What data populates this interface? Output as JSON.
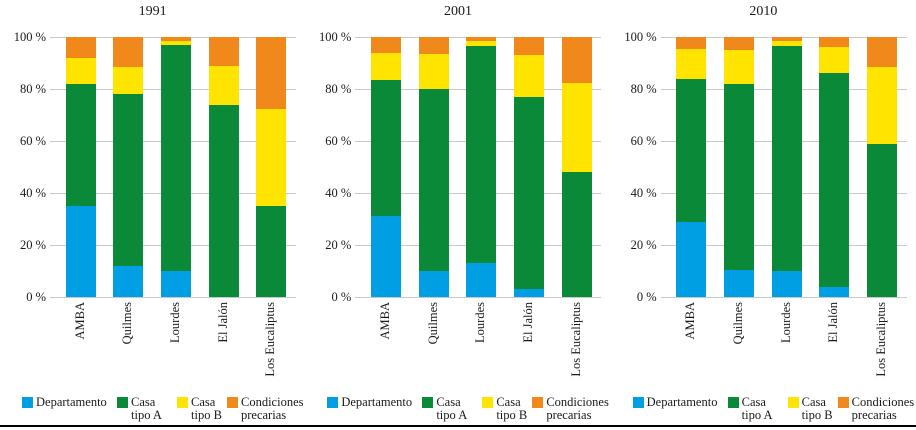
{
  "figure": {
    "y_axis_ticks": [
      "100 %",
      "80 %",
      "60 %",
      "40 %",
      "20 %",
      "0 %"
    ],
    "categories": [
      "AMBA",
      "Quilmes",
      "Lourdes",
      "El Jalón",
      "Los Eucaliptus"
    ],
    "colors": {
      "departamento": "#009EE2",
      "casa_tipo_a": "#0A8A38",
      "casa_tipo_b": "#FFE400",
      "condiciones_precarias": "#F0881C",
      "gridline": "#c9c9c9",
      "text": "#1a1a1a"
    },
    "legend": [
      {
        "line1": "Departamento",
        "line2": "",
        "color": "#009EE2"
      },
      {
        "line1": "Casa",
        "line2": "tipo A",
        "color": "#0A8A38"
      },
      {
        "line1": "Casa",
        "line2": "tipo B",
        "color": "#FFE400"
      },
      {
        "line1": "Condiciones",
        "line2": "precarias",
        "color": "#F0881C"
      }
    ]
  },
  "chart_data": [
    {
      "type": "bar",
      "stacked": true,
      "title": "1991",
      "ylabel": "",
      "xlabel": "",
      "ylim": [
        0,
        100
      ],
      "grid": true,
      "legend_position": "bottom",
      "categories": [
        "AMBA",
        "Quilmes",
        "Lourdes",
        "El Jalón",
        "Los Eucaliptus"
      ],
      "series": [
        {
          "name": "Departamento",
          "color": "#009EE2",
          "values": [
            35,
            12,
            10,
            0,
            0
          ]
        },
        {
          "name": "Casa tipo A",
          "color": "#0A8A38",
          "values": [
            47,
            66,
            87,
            74,
            35
          ]
        },
        {
          "name": "Casa tipo B",
          "color": "#FFE400",
          "values": [
            10,
            10.5,
            1.5,
            15,
            37.5
          ]
        },
        {
          "name": "Condiciones precarias",
          "color": "#F0881C",
          "values": [
            8,
            11.5,
            1.5,
            11,
            27.5
          ]
        }
      ]
    },
    {
      "type": "bar",
      "stacked": true,
      "title": "2001",
      "ylabel": "",
      "xlabel": "",
      "ylim": [
        0,
        100
      ],
      "grid": true,
      "legend_position": "bottom",
      "categories": [
        "AMBA",
        "Quilmes",
        "Lourdes",
        "El Jalón",
        "Los Eucaliptus"
      ],
      "series": [
        {
          "name": "Departamento",
          "color": "#009EE2",
          "values": [
            31,
            10,
            13,
            3,
            0
          ]
        },
        {
          "name": "Casa tipo A",
          "color": "#0A8A38",
          "values": [
            52.5,
            70,
            83.5,
            74,
            48
          ]
        },
        {
          "name": "Casa tipo B",
          "color": "#FFE400",
          "values": [
            10.5,
            13.5,
            2,
            16,
            34.5
          ]
        },
        {
          "name": "Condiciones precarias",
          "color": "#F0881C",
          "values": [
            6,
            6.5,
            1.5,
            7,
            17.5
          ]
        }
      ]
    },
    {
      "type": "bar",
      "stacked": true,
      "title": "2010",
      "ylabel": "",
      "xlabel": "",
      "ylim": [
        0,
        100
      ],
      "grid": true,
      "legend_position": "bottom",
      "categories": [
        "AMBA",
        "Quilmes",
        "Lourdes",
        "El Jalón",
        "Los Eucaliptus"
      ],
      "series": [
        {
          "name": "Departamento",
          "color": "#009EE2",
          "values": [
            29,
            10.5,
            10,
            4,
            0
          ]
        },
        {
          "name": "Casa tipo A",
          "color": "#0A8A38",
          "values": [
            55,
            71.5,
            86.5,
            82,
            59
          ]
        },
        {
          "name": "Casa tipo B",
          "color": "#FFE400",
          "values": [
            11.5,
            13,
            2,
            10,
            29.5
          ]
        },
        {
          "name": "Condiciones precarias",
          "color": "#F0881C",
          "values": [
            4.5,
            5,
            1.5,
            4,
            11.5
          ]
        }
      ]
    }
  ]
}
